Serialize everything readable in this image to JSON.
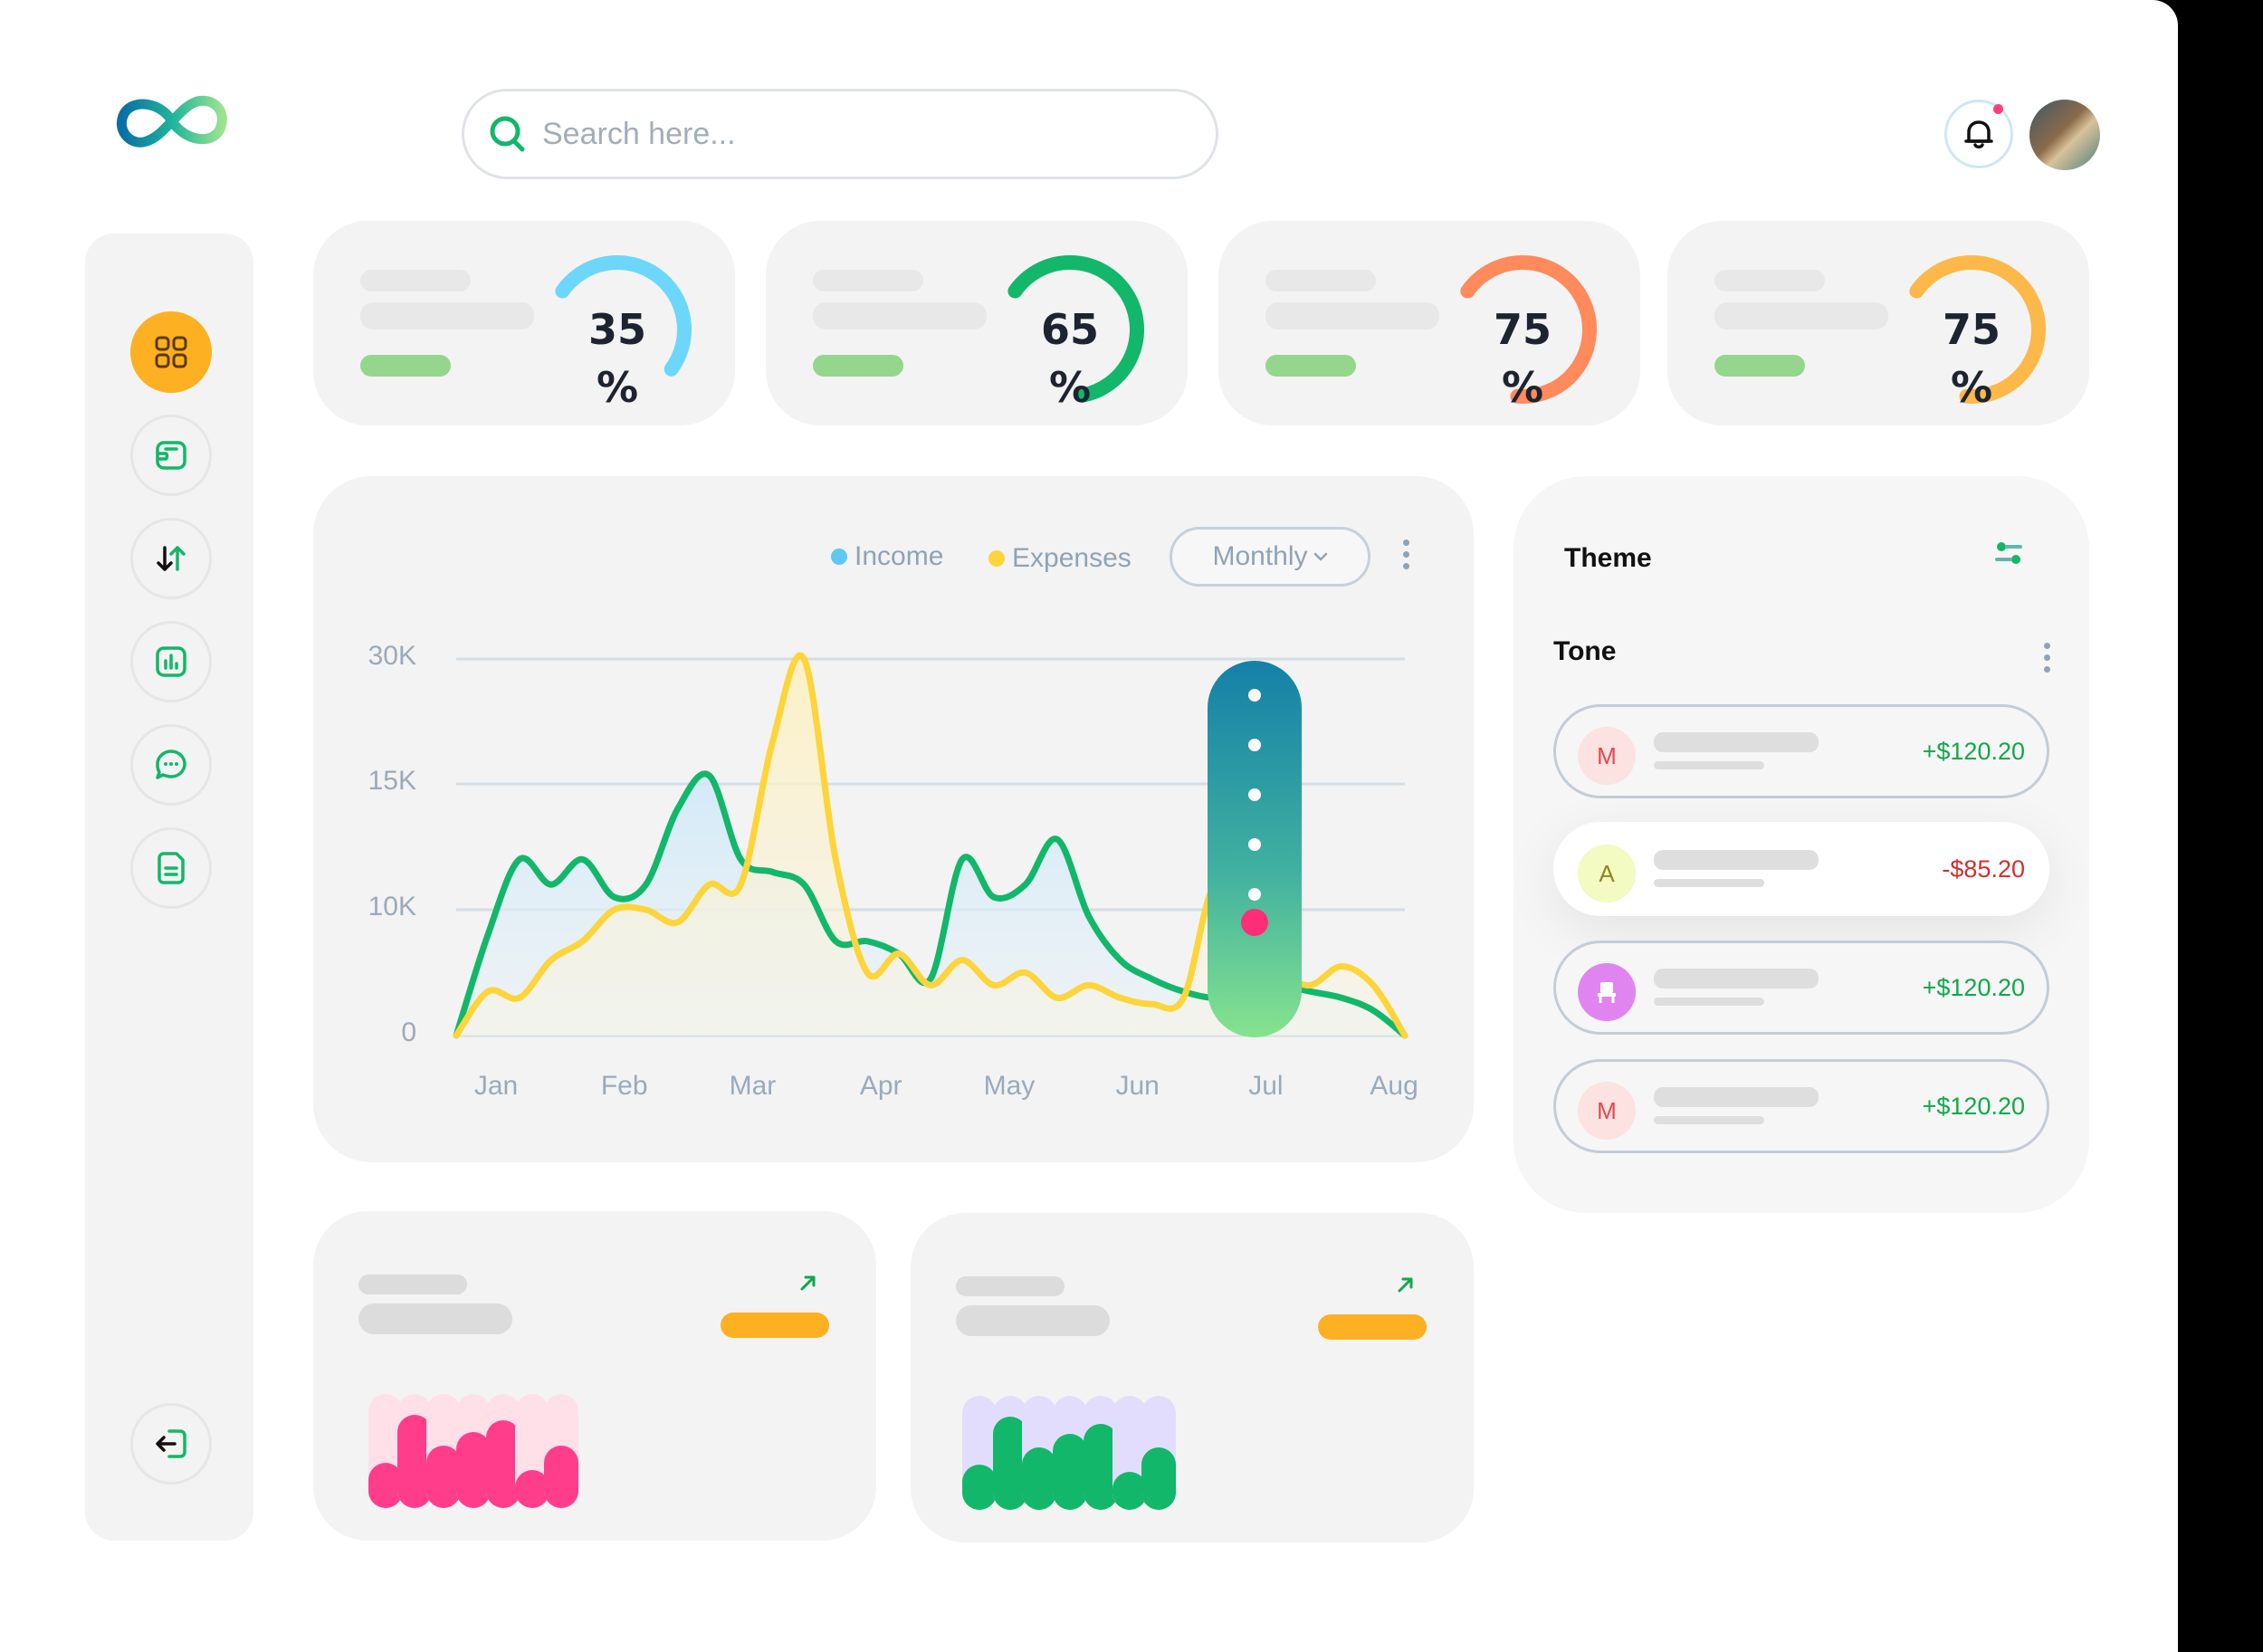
{
  "header": {
    "search_placeholder": "Search here..."
  },
  "icons": {
    "logo": "infinity-logo",
    "search": "search-icon",
    "notification": "bell-icon",
    "nav": [
      "dashboard-grid-icon",
      "wallet-icon",
      "transfer-arrows-icon",
      "bar-chart-icon",
      "message-icon",
      "document-icon"
    ],
    "logout": "logout-icon"
  },
  "colors": {
    "accent": "#fdb022",
    "green": "#12b76a",
    "income": "#5ec8f2",
    "expenses": "#fdd43a",
    "pink": "#ff3d8b",
    "positive": "#10a84a",
    "negative": "#d0312d"
  },
  "stat_cards": [
    {
      "value": "35",
      "unit": "%",
      "percent": 35,
      "color": "#6dd6fb"
    },
    {
      "value": "65",
      "unit": "%",
      "percent": 65,
      "color": "#12b76a"
    },
    {
      "value": "75",
      "unit": "%",
      "percent": 75,
      "color": "#ff8a5c"
    },
    {
      "value": "75",
      "unit": "%",
      "percent": 75,
      "color": "#fdb84a"
    }
  ],
  "chart": {
    "legend": {
      "income": "Income",
      "expenses": "Expenses"
    },
    "period_select": "Monthly"
  },
  "chart_data": {
    "type": "area",
    "y_ticks": [
      "30K",
      "15K",
      "10K",
      "0"
    ],
    "x_ticks": [
      "Jan",
      "Feb",
      "Mar",
      "Apr",
      "May",
      "Jun",
      "Jul",
      "Aug"
    ],
    "x": [
      0,
      0.25,
      0.5,
      0.75,
      1,
      1.25,
      1.5,
      1.75,
      2,
      2.25,
      2.5,
      2.75,
      3,
      3.25,
      3.5,
      3.75,
      4,
      4.25,
      4.5,
      4.75,
      5,
      5.25,
      5.5,
      5.75,
      6,
      6.25,
      6.5,
      6.75,
      7,
      7.25,
      7.5
    ],
    "series": [
      {
        "name": "Income",
        "color": "#12b76a",
        "values": [
          0,
          8,
          12,
          11,
          12,
          10.5,
          11,
          14,
          16,
          12,
          11.5,
          11,
          7.5,
          7.5,
          6.5,
          4.5,
          12,
          10.5,
          11,
          12.8,
          9.5,
          6,
          4.5,
          3.5,
          3,
          3.5,
          4,
          3.5,
          3,
          2,
          0
        ]
      },
      {
        "name": "Expenses",
        "color": "#fdd43a",
        "values": [
          0,
          3.5,
          3,
          6,
          7.5,
          10,
          10,
          9,
          11,
          11,
          20,
          30,
          12,
          5,
          6.5,
          4,
          6,
          4,
          5,
          3,
          4,
          3,
          2.5,
          3,
          11,
          6.5,
          5,
          4,
          5.5,
          4,
          0
        ]
      }
    ],
    "grid": true
  },
  "panel": {
    "title": "Theme",
    "subtitle": "Tone",
    "transactions": [
      {
        "initial": "M",
        "amount": "+$120.20",
        "type": "positive",
        "avatar_bg": "#fde2e2",
        "avatar_fg": "#e5484d"
      },
      {
        "initial": "A",
        "amount": "-$85.20",
        "type": "negative",
        "avatar_bg": "#f3fac2",
        "avatar_fg": "#8a8a1a"
      },
      {
        "initial": "",
        "icon": "chair-icon",
        "amount": "+$120.20",
        "type": "positive",
        "avatar_bg": "#e085f0",
        "avatar_fg": "#ffffff"
      },
      {
        "initial": "M",
        "amount": "+$120.20",
        "type": "positive",
        "avatar_bg": "#fde2e2",
        "avatar_fg": "#e5484d"
      }
    ]
  },
  "mini_charts": [
    {
      "track_color": "#ffe0e8",
      "fill_color": "#ff3d8b",
      "values": [
        0.4,
        0.82,
        0.55,
        0.67,
        0.77,
        0.33,
        0.55
      ]
    },
    {
      "track_color": "#e3ddfd",
      "fill_color": "#12b76a",
      "values": [
        0.4,
        0.82,
        0.55,
        0.67,
        0.75,
        0.33,
        0.55
      ]
    }
  ]
}
